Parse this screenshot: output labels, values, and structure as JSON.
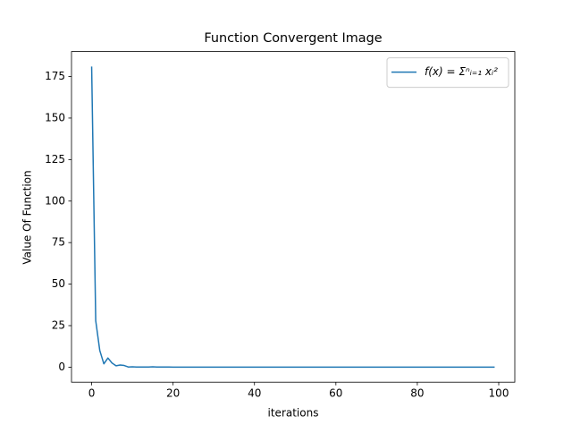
{
  "chart_data": {
    "type": "line",
    "title": "Function Convergent Image",
    "x_label": "iterations",
    "y_label": "Value Of Function",
    "x": [
      0,
      1,
      2,
      3,
      4,
      5,
      6,
      7,
      8,
      9,
      10,
      11,
      12,
      13,
      14,
      15,
      16,
      17,
      18,
      19,
      20,
      21,
      22,
      23,
      24,
      25,
      26,
      27,
      28,
      29,
      30,
      31,
      32,
      33,
      34,
      35,
      36,
      37,
      38,
      39,
      40,
      41,
      42,
      43,
      44,
      45,
      46,
      47,
      48,
      49,
      50,
      51,
      52,
      53,
      54,
      55,
      56,
      57,
      58,
      59,
      60,
      61,
      62,
      63,
      64,
      65,
      66,
      67,
      68,
      69,
      70,
      71,
      72,
      73,
      74,
      75,
      76,
      77,
      78,
      79,
      80,
      81,
      82,
      83,
      84,
      85,
      86,
      87,
      88,
      89,
      90,
      91,
      92,
      93,
      94,
      95,
      96,
      97,
      98,
      99
    ],
    "series": [
      {
        "name": "f(x) = Σⁿᵢ₌₁ xᵢ²",
        "color": "#1f77b4",
        "values": [
          181,
          28,
          10,
          2,
          5.5,
          2.5,
          0.8,
          1.3,
          1,
          0.1,
          0.2,
          0.1,
          0.05,
          0.1,
          0.1,
          0.2,
          0.05,
          0.05,
          0.05,
          0.05,
          0,
          0,
          0,
          0,
          0,
          0,
          0,
          0,
          0,
          0,
          0,
          0,
          0,
          0,
          0,
          0,
          0,
          0,
          0,
          0,
          0,
          0,
          0,
          0,
          0,
          0,
          0,
          0,
          0,
          0,
          0,
          0,
          0,
          0,
          0,
          0,
          0,
          0,
          0,
          0,
          0,
          0,
          0,
          0,
          0,
          0,
          0,
          0,
          0,
          0,
          0,
          0,
          0,
          0,
          0,
          0,
          0,
          0,
          0,
          0,
          0,
          0,
          0,
          0,
          0,
          0,
          0,
          0,
          0,
          0,
          0,
          0,
          0,
          0,
          0,
          0,
          0,
          0,
          0,
          0
        ]
      }
    ],
    "xlim": [
      -4.95,
      103.95
    ],
    "xticks": [
      0,
      20,
      40,
      60,
      80,
      100
    ],
    "ylim": [
      -9.05,
      190.05
    ],
    "yticks": [
      0,
      25,
      50,
      75,
      100,
      125,
      150,
      175
    ],
    "grid": false,
    "legend": "upper right"
  }
}
